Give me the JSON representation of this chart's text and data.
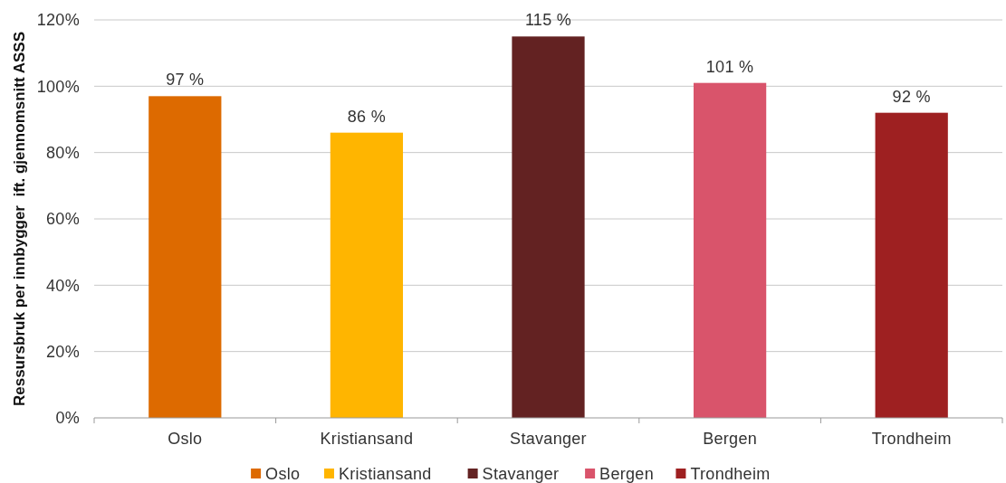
{
  "chart_data": {
    "type": "bar",
    "ylabel": "Ressursbruk per innbygger  ift. gjennomsnitt ASSS",
    "categories": [
      "Oslo",
      "Kristiansand",
      "Stavanger",
      "Bergen",
      "Trondheim"
    ],
    "stacked": true,
    "series": [
      {
        "name": "Oslo",
        "color": "#dd6a00",
        "values": [
          97,
          null,
          null,
          null,
          null
        ],
        "value_labels": [
          "97 %",
          null,
          null,
          null,
          null
        ]
      },
      {
        "name": "Kristiansand",
        "color": "#ffb500",
        "values": [
          null,
          86,
          null,
          null,
          null
        ],
        "value_labels": [
          null,
          "86 %",
          null,
          null,
          null
        ]
      },
      {
        "name": "Stavanger",
        "color": "#632222",
        "values": [
          null,
          null,
          115,
          null,
          null
        ],
        "value_labels": [
          null,
          null,
          "115 %",
          null,
          null
        ]
      },
      {
        "name": "Bergen",
        "color": "#d9546b",
        "values": [
          null,
          null,
          null,
          101,
          null
        ],
        "value_labels": [
          null,
          null,
          null,
          "101 %",
          null
        ]
      },
      {
        "name": "Trondheim",
        "color": "#9e2021",
        "values": [
          null,
          null,
          null,
          null,
          92
        ],
        "value_labels": [
          null,
          null,
          null,
          null,
          "92 %"
        ]
      }
    ],
    "ylim": [
      0,
      120
    ],
    "yticks": [
      {
        "value": 0,
        "label": "0%"
      },
      {
        "value": 20,
        "label": "20%"
      },
      {
        "value": 40,
        "label": "40%"
      },
      {
        "value": 60,
        "label": "60%"
      },
      {
        "value": 80,
        "label": "80%"
      },
      {
        "value": 100,
        "label": "100%"
      },
      {
        "value": 120,
        "label": "120%"
      }
    ],
    "grid": "y",
    "legend": "bottom"
  }
}
